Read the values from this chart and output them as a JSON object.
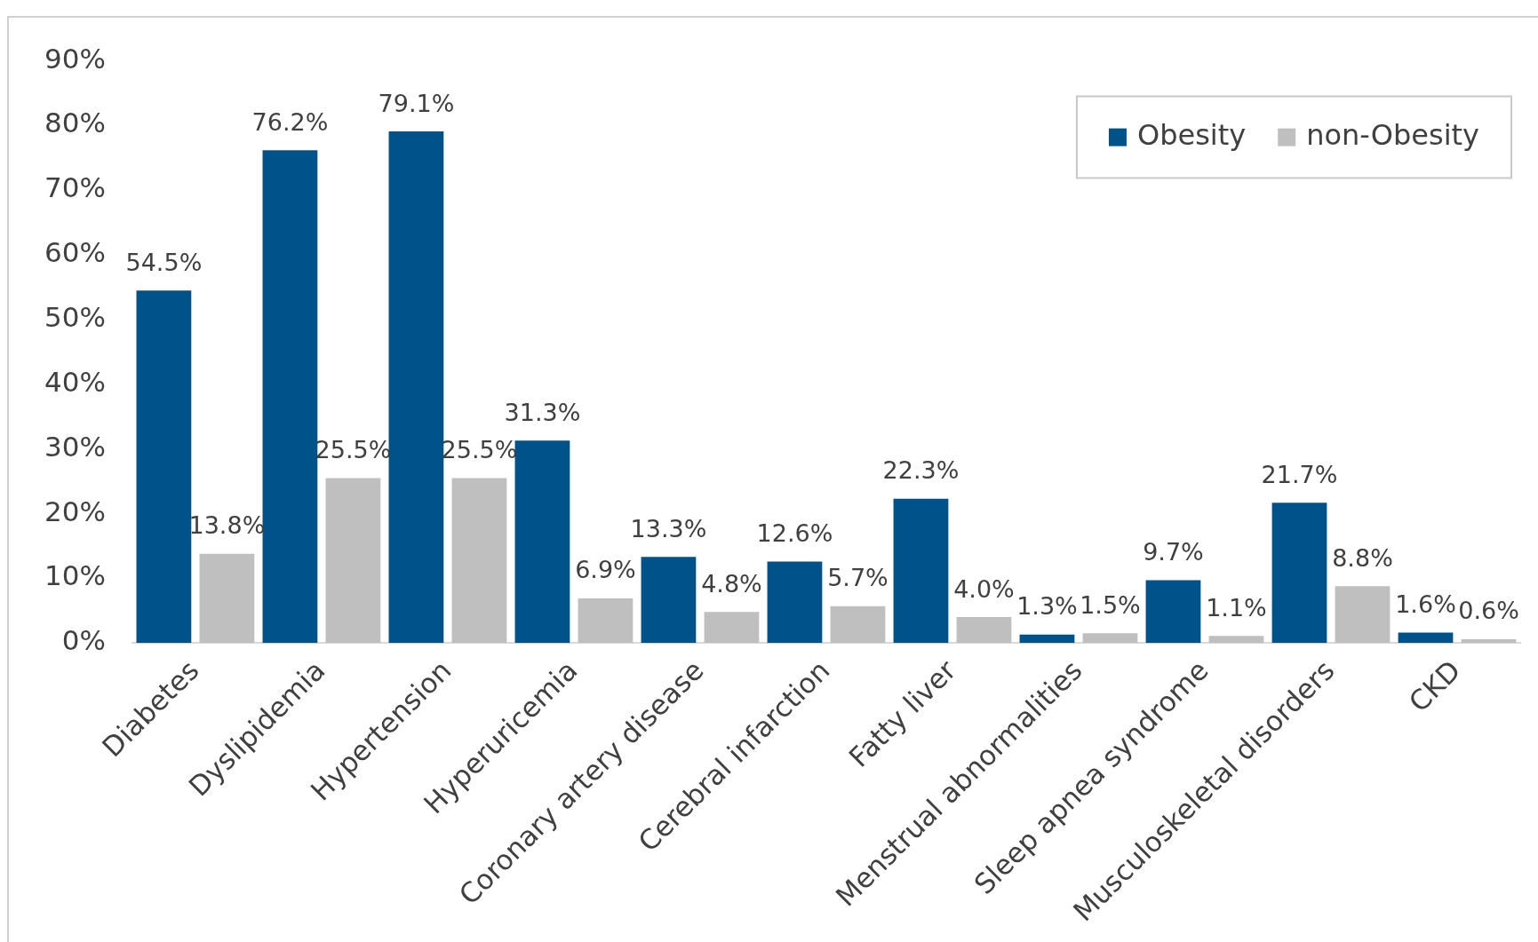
{
  "chart_data": {
    "type": "bar",
    "categories": [
      "Diabetes",
      "Dyslipidemia",
      "Hypertension",
      "Hyperuricemia",
      "Coronary artery disease",
      "Cerebral infarction",
      "Fatty liver",
      "Menstrual abnormalities",
      "Sleep apnea syndrome",
      "Musculoskeletal disorders",
      "CKD"
    ],
    "series": [
      {
        "name": "Obesity",
        "color": "#00538a",
        "values": [
          54.5,
          76.2,
          79.1,
          31.3,
          13.3,
          12.6,
          22.3,
          1.3,
          9.7,
          21.7,
          1.6
        ],
        "value_labels": [
          "54.5%",
          "76.2%",
          "79.1%",
          "31.3%",
          "13.3%",
          "12.6%",
          "22.3%",
          "1.3%",
          "9.7%",
          "21.7%",
          "1.6%"
        ]
      },
      {
        "name": "non-Obesity",
        "color": "#bfbfbf",
        "values": [
          13.8,
          25.5,
          25.5,
          6.9,
          4.8,
          5.7,
          4.0,
          1.5,
          1.1,
          8.8,
          0.6
        ],
        "value_labels": [
          "13.8%",
          "25.5%",
          "25.5%",
          "6.9%",
          "4.8%",
          "5.7%",
          "4.0%",
          "1.5%",
          "1.1%",
          "8.8%",
          "0.6%"
        ]
      }
    ],
    "ylim": [
      0,
      90
    ],
    "yticks": [
      {
        "value": 0,
        "label": "0%"
      },
      {
        "value": 10,
        "label": "10%"
      },
      {
        "value": 20,
        "label": "20%"
      },
      {
        "value": 30,
        "label": "30%"
      },
      {
        "value": 40,
        "label": "40%"
      },
      {
        "value": 50,
        "label": "50%"
      },
      {
        "value": 60,
        "label": "60%"
      },
      {
        "value": 70,
        "label": "70%"
      },
      {
        "value": 80,
        "label": "80%"
      },
      {
        "value": 90,
        "label": "90%"
      }
    ],
    "grid": false,
    "legend": "top right"
  }
}
